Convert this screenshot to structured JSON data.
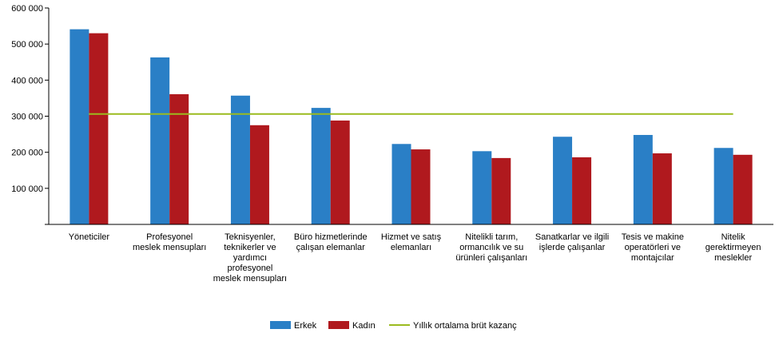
{
  "chart_data": {
    "type": "bar",
    "categories": [
      [
        "Yöneticiler"
      ],
      [
        "Profesyonel",
        "meslek mensupları"
      ],
      [
        "Teknisyenler,",
        "teknikerler ve",
        "yardımcı",
        "profesyonel",
        "meslek mensupları"
      ],
      [
        "Büro hizmetlerinde",
        "çalışan elemanlar"
      ],
      [
        "Hizmet ve satış",
        "elemanları"
      ],
      [
        "Nitelikli tarım,",
        "ormancılık ve su",
        "ürünleri çalışanları"
      ],
      [
        "Sanatkarlar ve ilgili",
        "işlerde çalışanlar"
      ],
      [
        "Tesis ve makine",
        "operatörleri ve",
        "montajcılar"
      ],
      [
        "Nitelik",
        "gerektirmeyen",
        "meslekler"
      ]
    ],
    "series": [
      {
        "name": "Erkek",
        "type": "bar",
        "color": "#2a7fc6",
        "values": [
          541000,
          463000,
          357000,
          323000,
          223000,
          203000,
          243000,
          248000,
          212000
        ]
      },
      {
        "name": "Kadın",
        "type": "bar",
        "color": "#b0191e",
        "values": [
          530000,
          361000,
          275000,
          288000,
          208000,
          184000,
          186000,
          197000,
          193000
        ]
      },
      {
        "name": "Yıllık ortalama brüt kazanç",
        "type": "line",
        "color": "#9bbb1f",
        "values": [
          306000,
          306000,
          306000,
          306000,
          306000,
          306000,
          306000,
          306000,
          306000
        ]
      }
    ],
    "y_ticks": [
      "100 000",
      "200 000",
      "300 000",
      "400 000",
      "500 000",
      "600 000"
    ],
    "ylim": [
      0,
      600000
    ],
    "grid": false,
    "legend_position": "bottom-center"
  }
}
